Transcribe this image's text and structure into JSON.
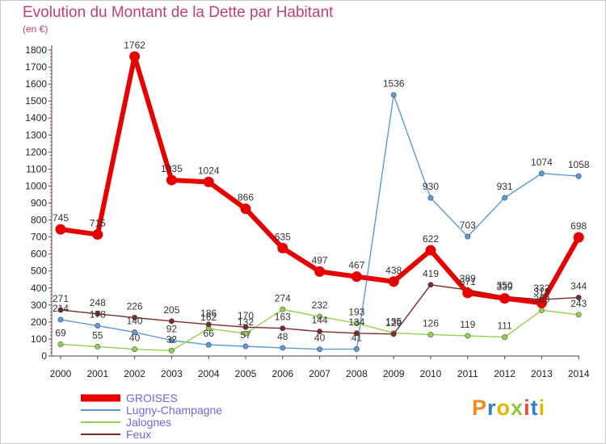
{
  "chart_data": {
    "type": "line",
    "title": "Evolution du Montant de la Dette par Habitant",
    "subtitle": "(en €)",
    "ylim": [
      0,
      1800
    ],
    "yticks": [
      0,
      100,
      200,
      300,
      400,
      500,
      600,
      700,
      800,
      900,
      1000,
      1100,
      1200,
      1300,
      1400,
      1500,
      1600,
      1700,
      1800
    ],
    "categories": [
      "2000",
      "2001",
      "2002",
      "2003",
      "2004",
      "2005",
      "2006",
      "2007",
      "2008",
      "2009",
      "2010",
      "2011",
      "2012",
      "2013",
      "2014"
    ],
    "grid": false,
    "legend_position": "bottom-left",
    "series": [
      {
        "name": "GROISES",
        "color": "#e60000",
        "values": [
          745,
          715,
          1762,
          1035,
          1024,
          866,
          635,
          497,
          467,
          438,
          622,
          371,
          339,
          312,
          698
        ]
      },
      {
        "name": "Lugny-Champagne",
        "color": "#5b9bd5",
        "values": [
          214,
          178,
          140,
          92,
          66,
          57,
          48,
          40,
          41,
          1536,
          930,
          703,
          931,
          1074,
          1058
        ]
      },
      {
        "name": "Jalognes",
        "color": "#92d050",
        "values": [
          69,
          55,
          40,
          32,
          162,
          132,
          274,
          232,
          193,
          135,
          126,
          119,
          111,
          269,
          243
        ]
      },
      {
        "name": "Feux",
        "color": "#7b2a2a",
        "values": [
          271,
          248,
          226,
          205,
          186,
          170,
          163,
          144,
          134,
          129,
          419,
          389,
          350,
          332,
          344
        ]
      }
    ]
  },
  "logo": {
    "letters": [
      "P",
      "r",
      "o",
      "x",
      "i",
      "t",
      "i"
    ]
  }
}
